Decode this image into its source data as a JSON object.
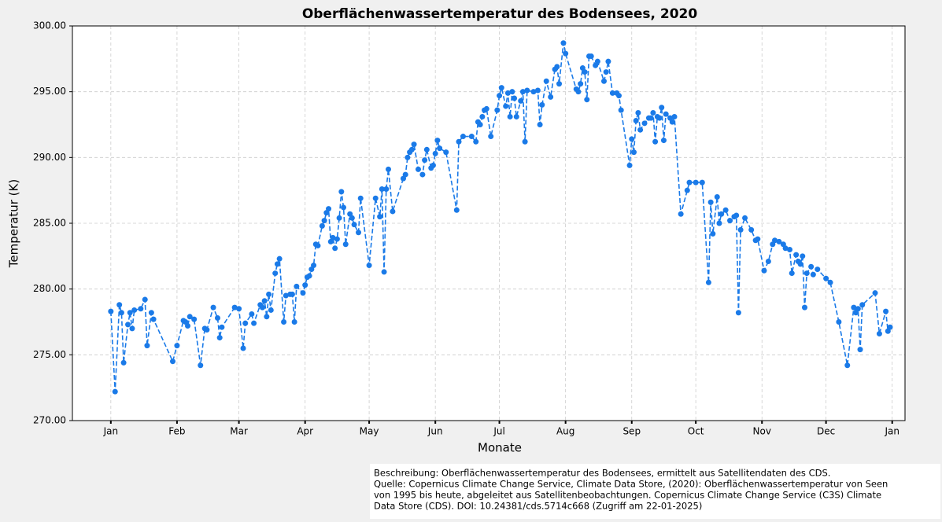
{
  "chart_data": {
    "type": "line",
    "title": "Oberflächenwassertemperatur des Bodensees, 2020",
    "x_label": "Monate",
    "y_label": "Temperatur (K)",
    "x": [
      0,
      2,
      4,
      5,
      6,
      8,
      9,
      10,
      11,
      14,
      16,
      17,
      19,
      20,
      29,
      31,
      34,
      35,
      36,
      37,
      39,
      42,
      44,
      45,
      48,
      50,
      51,
      52,
      58,
      60,
      62,
      63,
      66,
      67,
      70,
      71,
      72,
      73,
      74,
      75,
      77,
      78,
      79,
      81,
      82,
      84,
      85,
      86,
      87,
      90,
      91,
      92,
      93,
      94,
      95,
      96,
      97,
      99,
      100,
      101,
      102,
      103,
      104,
      105,
      106,
      107,
      108,
      109,
      110,
      112,
      113,
      114,
      116,
      117,
      121,
      124,
      126,
      127,
      128,
      129,
      130,
      132,
      137,
      138,
      139,
      140,
      141,
      142,
      144,
      146,
      147,
      148,
      150,
      151,
      152,
      153,
      154,
      157,
      162,
      163,
      165,
      169,
      171,
      172,
      173,
      174,
      175,
      176,
      178,
      181,
      182,
      183,
      185,
      186,
      187,
      188,
      189,
      190,
      192,
      193,
      194,
      195,
      198,
      200,
      201,
      202,
      204,
      206,
      208,
      209,
      210,
      212,
      213,
      218,
      219,
      220,
      221,
      222,
      223,
      224,
      225,
      227,
      228,
      231,
      232,
      233,
      235,
      237,
      238,
      239,
      243,
      244,
      245,
      246,
      247,
      248,
      250,
      252,
      253,
      254,
      255,
      256,
      257,
      258,
      259,
      260,
      262,
      263,
      264,
      267,
      270,
      271,
      274,
      277,
      280,
      281,
      282,
      284,
      285,
      286,
      288,
      290,
      292,
      293,
      294,
      295,
      297,
      300,
      302,
      303,
      306,
      308,
      310,
      311,
      313,
      315,
      316,
      318,
      319,
      321,
      322,
      323,
      324,
      325,
      326,
      328,
      329,
      331,
      335,
      337,
      341,
      345,
      348,
      349,
      350,
      351,
      352,
      358,
      360,
      363,
      364,
      365
    ],
    "series": [
      {
        "name": "Temperatur",
        "color": "#1a7ae8",
        "values": [
          278.3,
          272.2,
          278.8,
          278.2,
          274.4,
          277.3,
          278.2,
          277.0,
          278.4,
          278.5,
          279.2,
          275.7,
          278.2,
          277.7,
          274.5,
          275.7,
          277.6,
          277.5,
          277.2,
          277.9,
          277.7,
          274.2,
          277.0,
          276.9,
          278.6,
          277.8,
          276.3,
          277.1,
          278.6,
          278.5,
          275.5,
          277.4,
          278.1,
          277.4,
          278.8,
          278.6,
          279.1,
          277.9,
          279.6,
          278.4,
          281.2,
          281.9,
          282.3,
          277.5,
          279.5,
          279.6,
          279.6,
          277.5,
          280.2,
          279.7,
          280.3,
          280.9,
          281.0,
          281.5,
          281.8,
          283.4,
          283.3,
          284.8,
          285.2,
          285.8,
          286.1,
          283.6,
          283.9,
          283.1,
          283.8,
          285.4,
          287.4,
          286.2,
          283.4,
          285.7,
          285.4,
          284.9,
          284.3,
          286.9,
          281.8,
          286.9,
          285.5,
          287.6,
          281.3,
          287.6,
          289.1,
          285.9,
          288.4,
          288.7,
          290.0,
          290.4,
          290.6,
          291.0,
          289.1,
          288.7,
          289.8,
          290.6,
          289.2,
          289.4,
          290.3,
          291.3,
          290.7,
          290.4,
          286.0,
          291.2,
          291.6,
          291.6,
          291.2,
          292.7,
          292.5,
          293.1,
          293.6,
          293.7,
          291.6,
          293.6,
          294.7,
          295.3,
          293.9,
          294.9,
          293.1,
          295.0,
          294.5,
          293.1,
          294.3,
          295.0,
          291.2,
          295.1,
          295.0,
          295.1,
          292.5,
          294.0,
          295.8,
          294.6,
          296.7,
          296.9,
          295.6,
          298.7,
          297.9,
          295.2,
          295.0,
          295.6,
          296.8,
          296.5,
          294.4,
          297.7,
          297.7,
          297.0,
          297.3,
          295.8,
          296.5,
          297.3,
          294.9,
          294.9,
          294.7,
          293.6,
          289.4,
          291.4,
          290.4,
          292.8,
          293.4,
          292.1,
          292.6,
          293.0,
          293.0,
          293.4,
          291.2,
          293.1,
          293.0,
          293.8,
          291.3,
          293.3,
          293.0,
          292.7,
          293.1,
          285.7,
          287.5,
          288.1,
          288.1,
          288.1,
          280.5,
          286.6,
          284.2,
          287.0,
          285.0,
          285.7,
          286.0,
          285.2,
          285.5,
          285.6,
          278.2,
          284.5,
          285.4,
          284.5,
          283.7,
          283.8,
          281.4,
          282.1,
          283.4,
          283.7,
          283.6,
          283.4,
          283.1,
          283.0,
          281.2,
          282.6,
          282.1,
          281.9,
          282.5,
          278.6,
          281.2,
          281.7,
          281.1,
          281.5,
          280.8,
          280.5,
          277.5,
          274.2,
          278.6,
          278.2,
          278.5,
          275.4,
          278.8,
          279.7,
          276.6,
          278.3,
          276.8,
          277.1
        ]
      }
    ],
    "xlim": [
      -18,
      372
    ],
    "xticks": [
      {
        "value": 0,
        "label": "Jan"
      },
      {
        "value": 31,
        "label": "Feb"
      },
      {
        "value": 60,
        "label": "Mar"
      },
      {
        "value": 91,
        "label": "Apr"
      },
      {
        "value": 121,
        "label": "May"
      },
      {
        "value": 152,
        "label": "Jun"
      },
      {
        "value": 182,
        "label": "Jul"
      },
      {
        "value": 213,
        "label": "Aug"
      },
      {
        "value": 244,
        "label": "Sep"
      },
      {
        "value": 274,
        "label": "Oct"
      },
      {
        "value": 305,
        "label": "Nov"
      },
      {
        "value": 335,
        "label": "Dec"
      },
      {
        "value": 366,
        "label": "Jan"
      }
    ],
    "ylim": [
      270,
      300
    ],
    "yticks": [
      {
        "value": 270,
        "label": "270.00"
      },
      {
        "value": 275,
        "label": "275.00"
      },
      {
        "value": 280,
        "label": "280.00"
      },
      {
        "value": 285,
        "label": "285.00"
      },
      {
        "value": 290,
        "label": "290.00"
      },
      {
        "value": 295,
        "label": "295.00"
      },
      {
        "value": 300,
        "label": "300.00"
      }
    ],
    "grid": true,
    "note": [
      "Beschreibung: Oberflächenwassertemperatur des Bodensees, ermittelt aus Satellitendaten des CDS.",
      "Quelle: Copernicus Climate Change Service, Climate Data Store, (2020): Oberflächenwassertemperatur von Seen",
      "von 1995 bis heute, abgeleitet aus Satellitenbeobachtungen. Copernicus Climate Change Service (C3S) Climate",
      "Data Store (CDS). DOI: 10.24381/cds.5714c668 (Zugriff am 22-01-2025)"
    ]
  }
}
